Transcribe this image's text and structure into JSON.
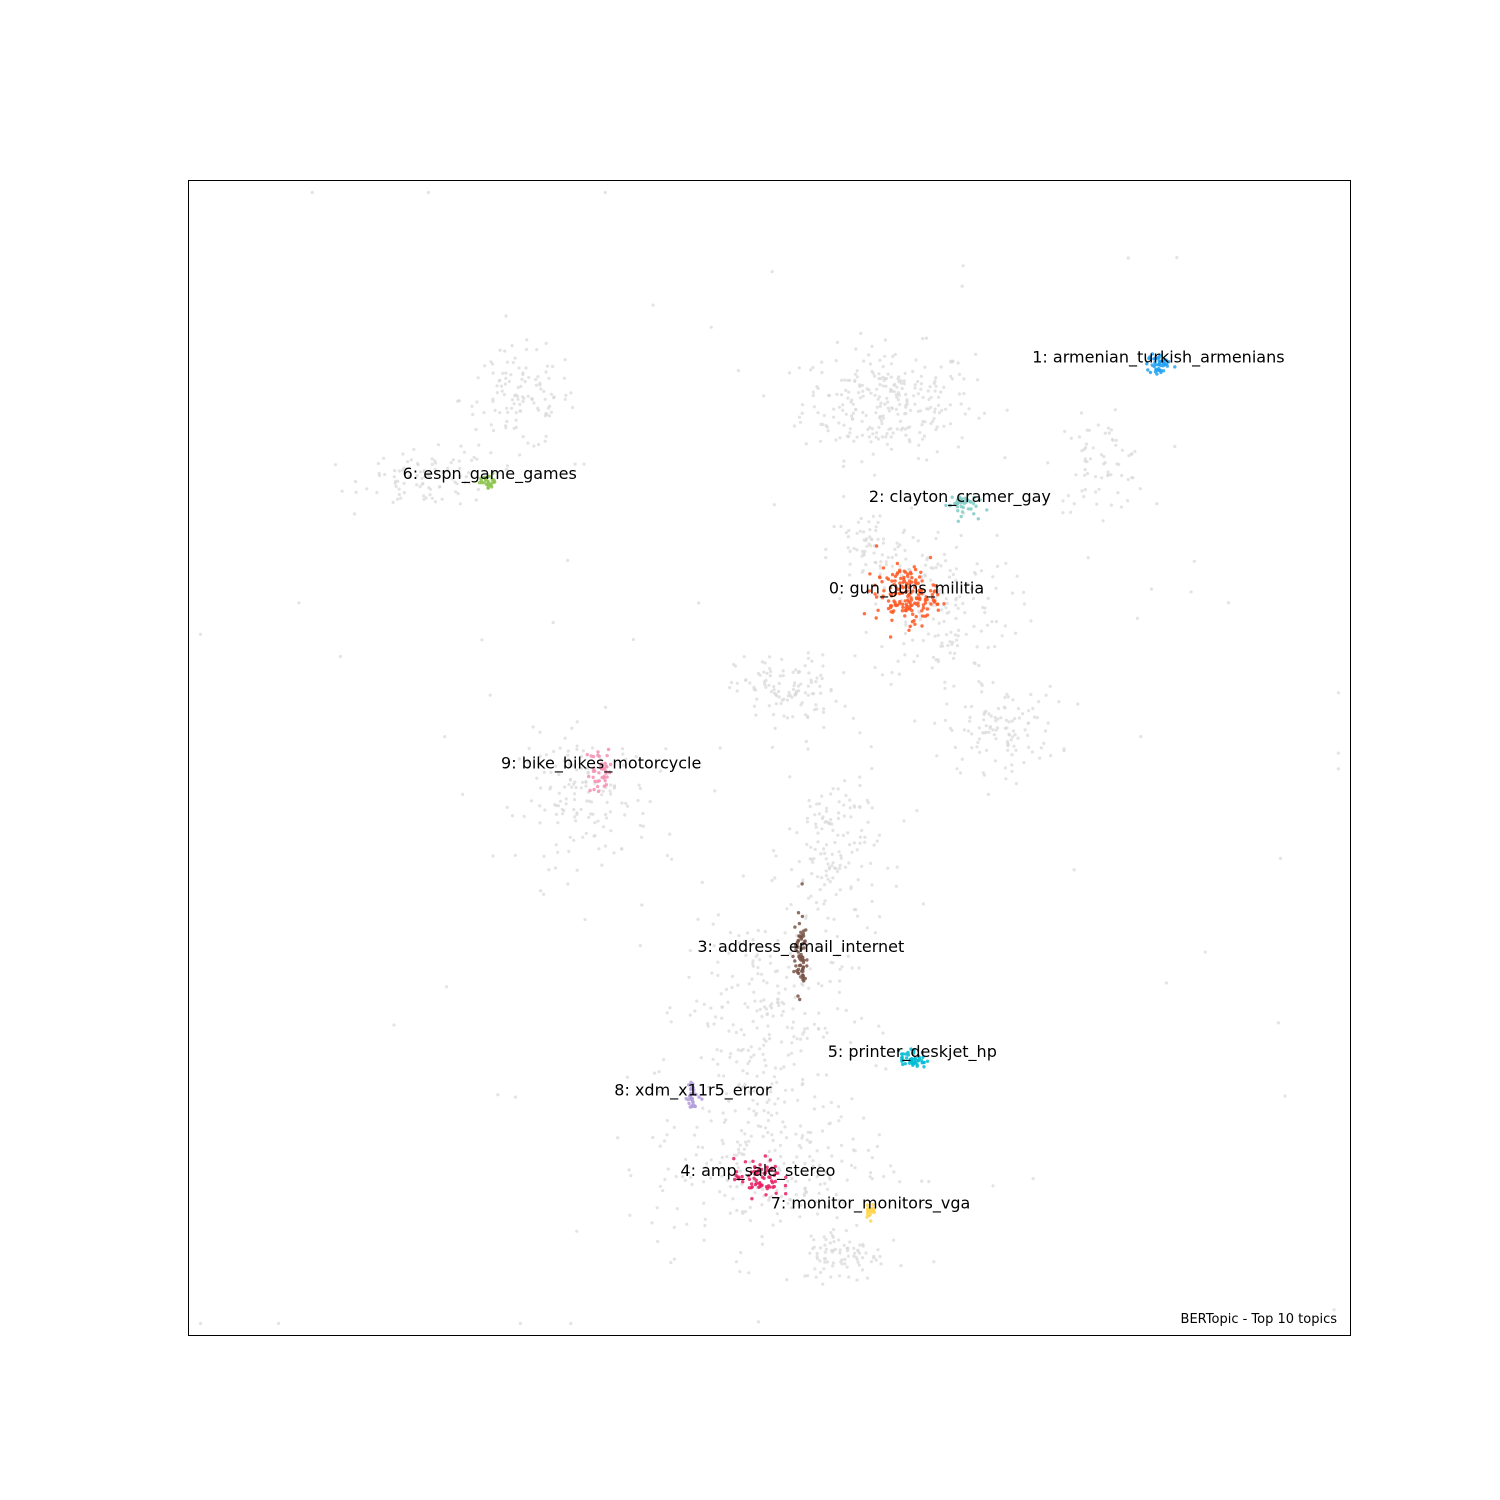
{
  "chart_data": {
    "type": "scatter",
    "title": "",
    "caption": "BERTopic - Top 10 topics",
    "xlabel": "",
    "ylabel": "",
    "ticks_visible": false,
    "grid": false,
    "background_point_color": "#d9d9d9",
    "background_clusters": [
      {
        "cx": 0.602,
        "cy": 0.808,
        "sx": 0.037,
        "sy": 0.024,
        "n": 280
      },
      {
        "cx": 0.284,
        "cy": 0.811,
        "sx": 0.025,
        "sy": 0.022,
        "n": 120
      },
      {
        "cx": 0.206,
        "cy": 0.742,
        "sx": 0.028,
        "sy": 0.012,
        "n": 90
      },
      {
        "cx": 0.786,
        "cy": 0.754,
        "sx": 0.02,
        "sy": 0.02,
        "n": 70
      },
      {
        "cx": 0.586,
        "cy": 0.68,
        "sx": 0.018,
        "sy": 0.018,
        "n": 70
      },
      {
        "cx": 0.648,
        "cy": 0.63,
        "sx": 0.03,
        "sy": 0.035,
        "n": 160
      },
      {
        "cx": 0.515,
        "cy": 0.559,
        "sx": 0.022,
        "sy": 0.015,
        "n": 110
      },
      {
        "cx": 0.7,
        "cy": 0.525,
        "sx": 0.025,
        "sy": 0.018,
        "n": 110
      },
      {
        "cx": 0.341,
        "cy": 0.464,
        "sx": 0.028,
        "sy": 0.028,
        "n": 150
      },
      {
        "cx": 0.555,
        "cy": 0.418,
        "sx": 0.02,
        "sy": 0.04,
        "n": 150
      },
      {
        "cx": 0.494,
        "cy": 0.28,
        "sx": 0.035,
        "sy": 0.045,
        "n": 220
      },
      {
        "cx": 0.5,
        "cy": 0.15,
        "sx": 0.05,
        "sy": 0.04,
        "n": 260
      },
      {
        "cx": 0.564,
        "cy": 0.07,
        "sx": 0.018,
        "sy": 0.012,
        "n": 80
      },
      {
        "cx": 0.5,
        "cy": 0.5,
        "sx": 0.28,
        "sy": 0.28,
        "n": 90
      }
    ],
    "topics": [
      {
        "id": 0,
        "label": "0: gun_guns_militia",
        "color": "#ff5722",
        "x": 0.618,
        "y": 0.641,
        "spread_x": 0.013,
        "spread_y": 0.012,
        "n": 170
      },
      {
        "id": 1,
        "label": "1: armenian_turkish_armenians",
        "color": "#1da1f2",
        "x": 0.835,
        "y": 0.841,
        "spread_x": 0.005,
        "spread_y": 0.005,
        "n": 45
      },
      {
        "id": 2,
        "label": "2: clayton_cramer_gay",
        "color": "#80cbc4",
        "x": 0.664,
        "y": 0.72,
        "spread_x": 0.007,
        "spread_y": 0.005,
        "n": 40
      },
      {
        "id": 3,
        "label": "3: address_email_internet",
        "color": "#795548",
        "x": 0.527,
        "y": 0.33,
        "spread_x": 0.003,
        "spread_y": 0.017,
        "n": 70
      },
      {
        "id": 4,
        "label": "4: amp_sale_stereo",
        "color": "#e91e63",
        "x": 0.49,
        "y": 0.136,
        "spread_x": 0.01,
        "spread_y": 0.008,
        "n": 70
      },
      {
        "id": 5,
        "label": "5: printer_deskjet_hp",
        "color": "#00bcd4",
        "x": 0.623,
        "y": 0.239,
        "spread_x": 0.006,
        "spread_y": 0.004,
        "n": 50
      },
      {
        "id": 6,
        "label": "6: espn_game_games",
        "color": "#8bc34a",
        "x": 0.259,
        "y": 0.74,
        "spread_x": 0.004,
        "spread_y": 0.003,
        "n": 25
      },
      {
        "id": 7,
        "label": "7: monitor_monitors_vga",
        "color": "#ffd54f",
        "x": 0.587,
        "y": 0.108,
        "spread_x": 0.002,
        "spread_y": 0.003,
        "n": 25
      },
      {
        "id": 8,
        "label": "8: xdm_x11r5_error",
        "color": "#b39ddb",
        "x": 0.434,
        "y": 0.206,
        "spread_x": 0.003,
        "spread_y": 0.006,
        "n": 30
      },
      {
        "id": 9,
        "label": "9: bike_bikes_motorcycle",
        "color": "#f48fb1",
        "x": 0.355,
        "y": 0.489,
        "spread_x": 0.006,
        "spread_y": 0.01,
        "n": 40
      }
    ]
  }
}
